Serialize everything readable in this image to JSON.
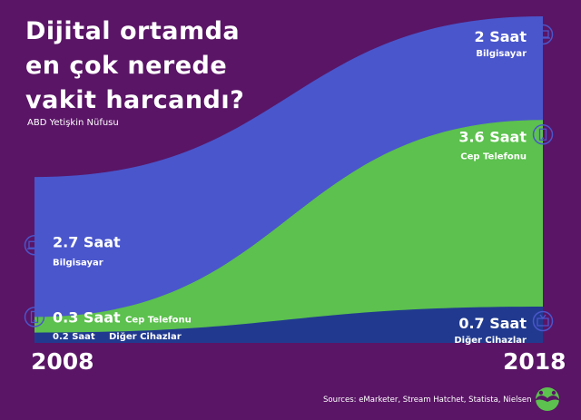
{
  "page": {
    "title": "Dijital ortamda en çok nerede vakit harcandı?",
    "subtitle": "ABD Yetişkin Nüfusu",
    "sources": "Sources: eMarketer, Stream Hatchet, Statista, Nielsen"
  },
  "chart_data": {
    "type": "area",
    "title": "Dijital ortamda en çok nerede vakit harcandı?",
    "subtitle": "ABD Yetişkin Nüfusu",
    "x": [
      "2008",
      "2018"
    ],
    "stacked": true,
    "series": [
      {
        "name": "Diğer Cihazlar",
        "values": [
          0.2,
          0.7
        ],
        "color": "#213a8f",
        "icon": "tv-icon",
        "labels": {
          "start_value": "0.2 Saat",
          "end_value": "0.7 Saat"
        }
      },
      {
        "name": "Cep Telefonu",
        "values": [
          0.3,
          3.6
        ],
        "color": "#5cc14e",
        "icon": "phone-icon",
        "labels": {
          "start_value": "0.3 Saat",
          "end_value": "3.6 Saat"
        }
      },
      {
        "name": "Bilgisayar",
        "values": [
          2.7,
          2
        ],
        "color": "#4a56cc",
        "icon": "laptop-icon",
        "labels": {
          "start_value": "2.7 Saat",
          "end_value": "2 Saat"
        }
      }
    ],
    "ylim": [
      0,
      6.3
    ],
    "grid": false,
    "legend": "none"
  },
  "colors": {
    "background": "#5a1566",
    "icon_stroke": "#4a56cc",
    "text": "#ffffff",
    "logo": "#5cc14e"
  },
  "logo": {
    "icon": "mustache-logo-icon"
  }
}
